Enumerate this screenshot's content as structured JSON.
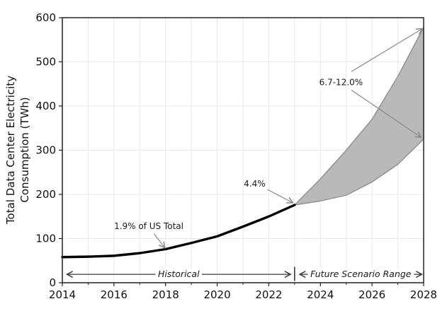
{
  "figure": {
    "background": "#ffffff",
    "ylabel_line1": "Total Data Center Electricity",
    "ylabel_line2": "Consumption (TWh)"
  },
  "chart_data": {
    "type": "line",
    "title": "",
    "xlabel": "",
    "ylabel": "Total Data Center Electricity Consumption (TWh)",
    "xlim": [
      2014,
      2028
    ],
    "ylim": [
      0,
      600
    ],
    "x_ticks_major": [
      2014,
      2016,
      2018,
      2020,
      2022,
      2024,
      2026,
      2028
    ],
    "x_ticks_minor": [
      2015,
      2017,
      2019,
      2021,
      2023,
      2025,
      2027
    ],
    "y_ticks": [
      0,
      100,
      200,
      300,
      400,
      500,
      600
    ],
    "grid": {
      "on": true,
      "color": "#e8e8e8",
      "x_every_year": true,
      "y_every_tick": true
    },
    "legend": "none",
    "colors": {
      "historical_line": "#000000",
      "band_fill": "#b9b9b9",
      "band_edge": "#909090",
      "annotation_arrow": "#8a8a8a",
      "span_arrow": "#3a3a3a",
      "spine": "#222222"
    },
    "series": [
      {
        "name": "Historical",
        "kind": "line",
        "x": [
          2014,
          2015,
          2016,
          2017,
          2018,
          2019,
          2020,
          2021,
          2022,
          2023
        ],
        "y": [
          58,
          59,
          61,
          67,
          76,
          90,
          105,
          127,
          150,
          176
        ]
      },
      {
        "name": "Future Scenario Range",
        "kind": "band",
        "x": [
          2023,
          2024,
          2025,
          2026,
          2027,
          2028
        ],
        "upper": [
          176,
          235,
          300,
          370,
          467,
          578
        ],
        "lower": [
          176,
          185,
          198,
          228,
          268,
          325
        ]
      }
    ],
    "annotations": [
      {
        "id": "pct-2018",
        "text": "1.9% of US Total",
        "tx": 2017.35,
        "ty": 128,
        "arrows": [
          {
            "x1": 2017.55,
            "y1": 111,
            "x2": 2017.97,
            "y2": 79
          }
        ]
      },
      {
        "id": "pct-2023",
        "text": "4.4%",
        "tx": 2021.45,
        "ty": 224,
        "arrows": [
          {
            "x1": 2021.95,
            "y1": 211,
            "x2": 2022.93,
            "y2": 181
          }
        ]
      },
      {
        "id": "pct-2028",
        "text": "6.7-12.0%",
        "tx": 2024.8,
        "ty": 454,
        "arrows": [
          {
            "x1": 2025.2,
            "y1": 478,
            "x2": 2027.95,
            "y2": 575
          },
          {
            "x1": 2025.2,
            "y1": 436,
            "x2": 2027.9,
            "y2": 329
          }
        ]
      }
    ],
    "spans": [
      {
        "id": "historical-span",
        "label": "Historical",
        "x1": 2014.18,
        "x2": 2022.84,
        "y": 19
      },
      {
        "id": "future-span",
        "label": "Future Scenario Range",
        "x1": 2023.2,
        "x2": 2027.93,
        "y": 19
      }
    ],
    "divider": {
      "x": 2023,
      "y_bottom": 4,
      "y_top": 36
    }
  }
}
